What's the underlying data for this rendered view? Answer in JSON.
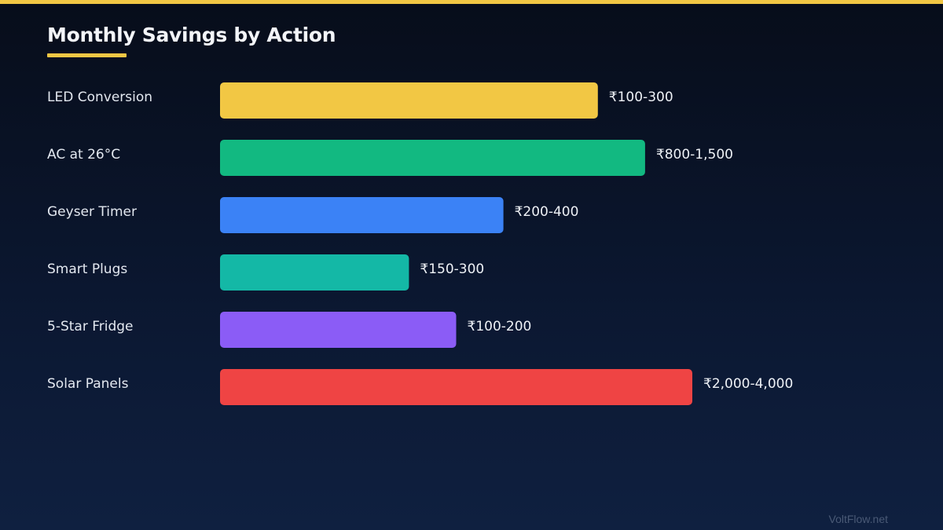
{
  "chart_data": {
    "type": "bar",
    "orientation": "horizontal",
    "title": "Monthly Savings by Action",
    "categories": [
      "LED Conversion",
      "AC at 26°C",
      "Geyser Timer",
      "Smart Plugs",
      "5-Star Fridge",
      "Solar Panels"
    ],
    "values": [
      8,
      9,
      6,
      4,
      5,
      10
    ],
    "value_labels": [
      "₹100-300",
      "₹800-1,500",
      "₹200-400",
      "₹150-300",
      "₹100-200",
      "₹2,000-4,000"
    ],
    "colors": [
      "#f2c744",
      "#12b981",
      "#3b82f6",
      "#14b8a6",
      "#8b5cf6",
      "#ef4444"
    ],
    "xlim": [
      0,
      10
    ],
    "grid": false,
    "legend": "none"
  },
  "accent_color": "#f2c744",
  "watermark": "VoltFlow.net"
}
